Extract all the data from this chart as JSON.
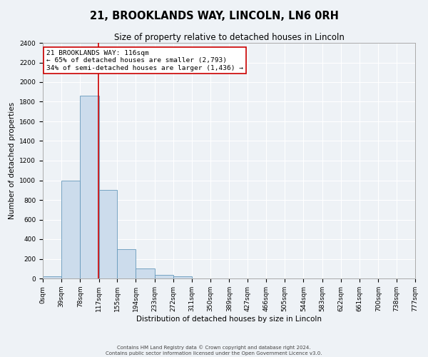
{
  "title": "21, BROOKLANDS WAY, LINCOLN, LN6 0RH",
  "subtitle": "Size of property relative to detached houses in Lincoln",
  "xlabel": "Distribution of detached houses by size in Lincoln",
  "ylabel": "Number of detached properties",
  "footer_line1": "Contains HM Land Registry data © Crown copyright and database right 2024.",
  "footer_line2": "Contains public sector information licensed under the Open Government Licence v3.0.",
  "bin_edges": [
    0,
    39,
    78,
    117,
    155,
    194,
    233,
    272,
    311,
    350,
    389,
    427,
    466,
    505,
    544,
    583,
    622,
    661,
    700,
    738,
    777
  ],
  "bin_labels": [
    "0sqm",
    "39sqm",
    "78sqm",
    "117sqm",
    "155sqm",
    "194sqm",
    "233sqm",
    "272sqm",
    "311sqm",
    "350sqm",
    "389sqm",
    "427sqm",
    "466sqm",
    "505sqm",
    "544sqm",
    "583sqm",
    "622sqm",
    "661sqm",
    "700sqm",
    "738sqm",
    "777sqm"
  ],
  "bar_heights": [
    20,
    1000,
    1860,
    900,
    300,
    100,
    40,
    20,
    0,
    0,
    0,
    0,
    0,
    0,
    0,
    0,
    0,
    0,
    0,
    0
  ],
  "bar_color": "#ccdcec",
  "bar_edge_color": "#6699bb",
  "property_line_x": 116,
  "property_line_color": "#cc0000",
  "annotation_text": "21 BROOKLANDS WAY: 116sqm\n← 65% of detached houses are smaller (2,793)\n34% of semi-detached houses are larger (1,436) →",
  "annotation_box_color": "#ffffff",
  "annotation_box_edge_color": "#cc0000",
  "ylim": [
    0,
    2400
  ],
  "yticks": [
    0,
    200,
    400,
    600,
    800,
    1000,
    1200,
    1400,
    1600,
    1800,
    2000,
    2200,
    2400
  ],
  "background_color": "#eef2f6",
  "plot_bg_color": "#eef2f6",
  "grid_color": "#ffffff",
  "title_fontsize": 10.5,
  "subtitle_fontsize": 8.5,
  "axis_label_fontsize": 7.5,
  "tick_fontsize": 6.5,
  "annotation_fontsize": 6.8
}
